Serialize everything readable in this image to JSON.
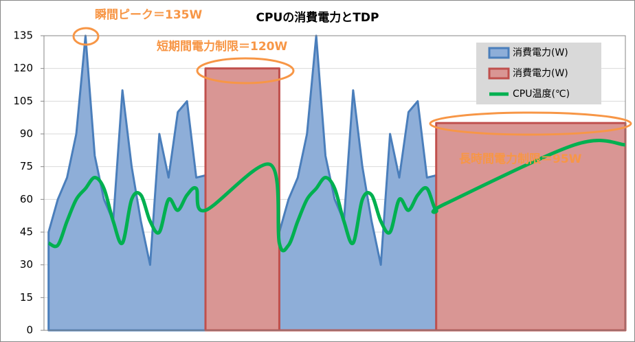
{
  "chart_data": {
    "type": "area",
    "title": "CPUの消費電力とTDP",
    "annotations": [
      {
        "text": "瞬間ピーク＝135W"
      },
      {
        "text": "短期間電力制限＝120W"
      },
      {
        "text": "長時間電力制限＝95W"
      }
    ],
    "xlim": [
      -0.5,
      62.5
    ],
    "ylim": [
      0,
      135
    ],
    "yticks": [
      0,
      15,
      30,
      45,
      60,
      75,
      90,
      105,
      120,
      135
    ],
    "grid": true,
    "legend": "upper-right",
    "series": [
      {
        "name": "消費電力(W)",
        "kind": "area",
        "color": "#4a7ebb",
        "fill": "#8eaed8",
        "x": [
          0,
          0,
          1,
          2,
          3,
          4,
          5,
          6,
          7,
          8,
          9,
          10,
          11,
          12,
          13,
          14,
          15,
          16,
          17,
          17,
          25,
          25,
          26,
          27,
          28,
          29,
          30,
          31,
          32,
          33,
          34,
          35,
          36,
          37,
          38,
          39,
          40,
          41,
          42,
          42
        ],
        "values": [
          0,
          45,
          60,
          70,
          90,
          135,
          80,
          60,
          50,
          110,
          75,
          50,
          30,
          90,
          70,
          100,
          105,
          70,
          71,
          0,
          0,
          45,
          60,
          70,
          90,
          135,
          80,
          60,
          50,
          110,
          75,
          50,
          30,
          90,
          70,
          100,
          105,
          70,
          71,
          0
        ]
      },
      {
        "name": "消費電力(W)",
        "kind": "area",
        "color": "#c0504d",
        "fill": "#d99694",
        "x": [
          17,
          17,
          25,
          25,
          42,
          42,
          62.5,
          62.5
        ],
        "values": [
          0,
          120,
          120,
          0,
          0,
          95,
          95,
          0
        ]
      },
      {
        "name": "CPU温度(℃)",
        "kind": "line",
        "color": "#00b050",
        "x": [
          0,
          1,
          2,
          3,
          4,
          5,
          6,
          7,
          8,
          9,
          10,
          11,
          12,
          13,
          14,
          15,
          16,
          17,
          24,
          25,
          26,
          27,
          28,
          29,
          30,
          31,
          32,
          33,
          34,
          35,
          36,
          37,
          38,
          39,
          40,
          41,
          42,
          43,
          57,
          62.5
        ],
        "values": [
          40,
          39,
          50,
          60,
          65,
          70,
          65,
          50,
          40,
          60,
          62,
          50,
          45,
          60,
          55,
          62,
          65,
          55,
          76,
          40,
          39,
          50,
          60,
          65,
          70,
          65,
          50,
          40,
          60,
          62,
          50,
          45,
          60,
          55,
          62,
          65,
          55,
          58,
          85,
          85
        ]
      }
    ]
  }
}
